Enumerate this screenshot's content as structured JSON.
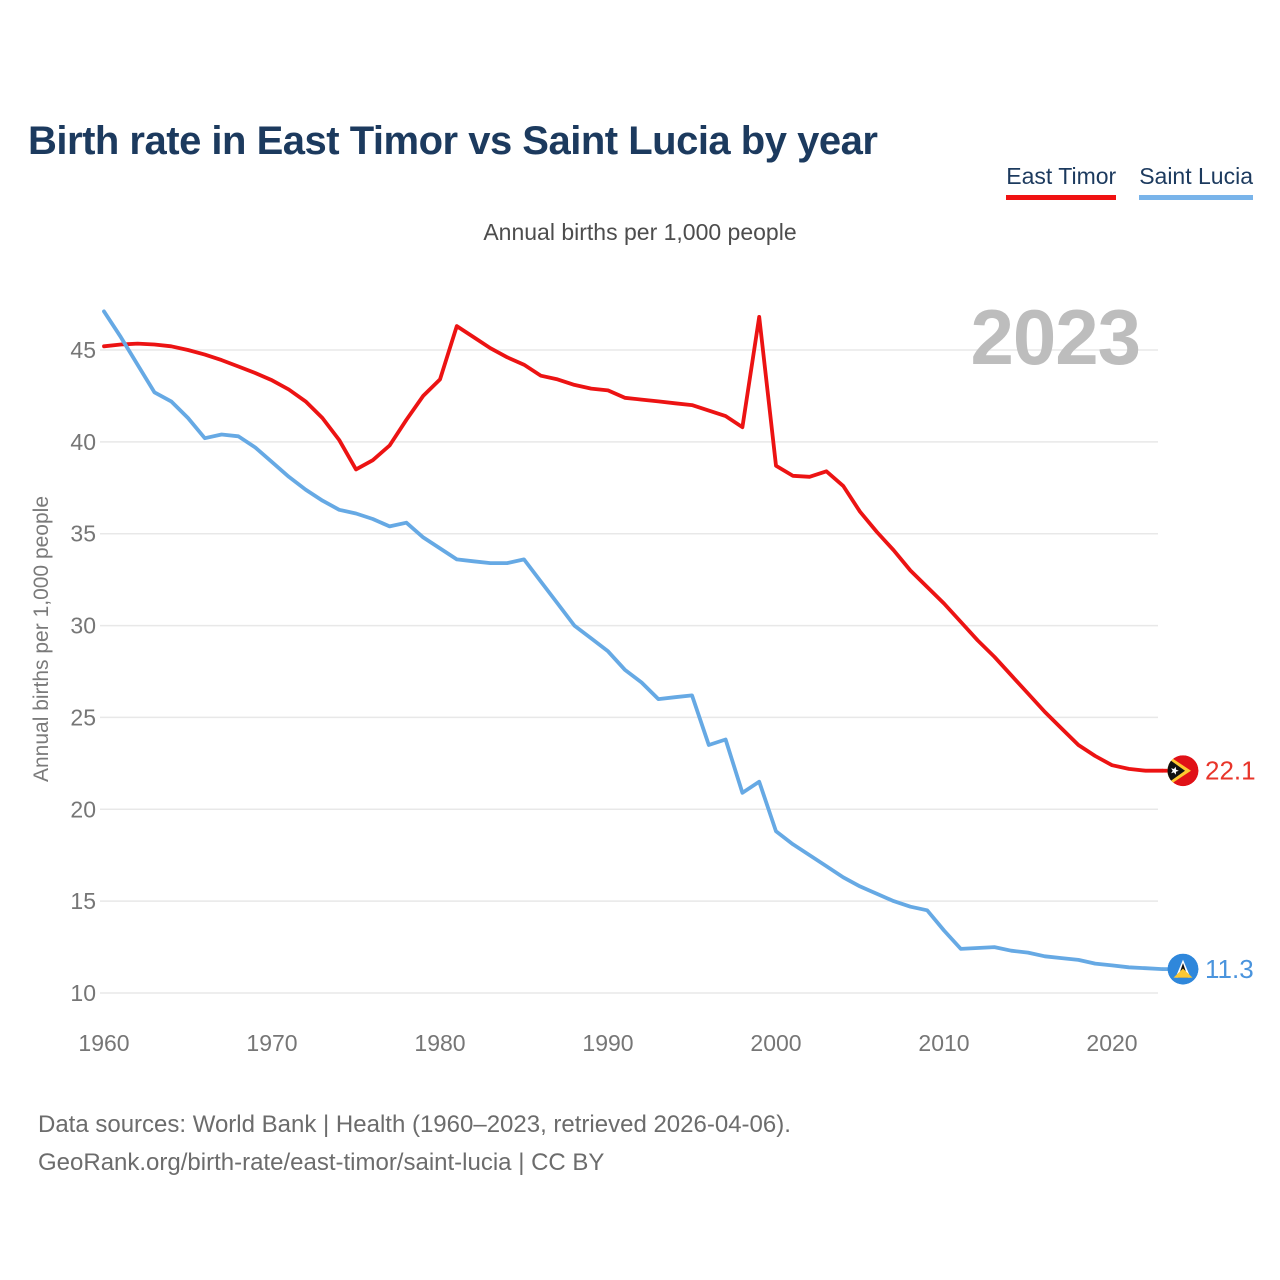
{
  "header": {
    "title": "Birth rate in East Timor vs Saint Lucia by year"
  },
  "legend": {
    "items": [
      {
        "label": "East Timor",
        "underline_color": "#f01212"
      },
      {
        "label": "Saint Lucia",
        "underline_color": "#79b4ea"
      }
    ]
  },
  "subtitle": "Annual births per 1,000 people",
  "watermark_year": "2023",
  "chart_data": {
    "type": "line",
    "title": "Birth rate in East Timor vs Saint Lucia by year",
    "ylabel": "Annual births per 1,000 people",
    "xlabel": "",
    "grid": "horizontal-only",
    "legend_position": "top-right",
    "ylim": [
      8.6,
      47.6
    ],
    "xlim": [
      1960,
      2023
    ],
    "y_ticks": [
      45,
      40,
      35,
      30,
      25,
      20,
      15,
      10
    ],
    "x_ticks": [
      1960,
      1970,
      1980,
      1990,
      2000,
      2010,
      2020
    ],
    "x": [
      1960,
      1961,
      1962,
      1963,
      1964,
      1965,
      1966,
      1967,
      1968,
      1969,
      1970,
      1971,
      1972,
      1973,
      1974,
      1975,
      1976,
      1977,
      1978,
      1979,
      1980,
      1981,
      1982,
      1983,
      1984,
      1985,
      1986,
      1987,
      1988,
      1989,
      1990,
      1991,
      1992,
      1993,
      1994,
      1995,
      1996,
      1997,
      1998,
      1999,
      2000,
      2001,
      2002,
      2003,
      2004,
      2005,
      2006,
      2007,
      2008,
      2009,
      2010,
      2011,
      2012,
      2013,
      2014,
      2015,
      2016,
      2017,
      2018,
      2019,
      2020,
      2021,
      2022,
      2023
    ],
    "series": [
      {
        "name": "East Timor",
        "color": "#ec1313",
        "label_color": "#e8352a",
        "end_label": "22.1",
        "end_value": 22.1,
        "values": [
          45.2,
          45.3,
          45.35,
          45.3,
          45.2,
          45.0,
          44.75,
          44.45,
          44.1,
          43.75,
          43.35,
          42.85,
          42.2,
          41.3,
          40.1,
          38.5,
          39.0,
          39.8,
          41.2,
          42.5,
          43.4,
          46.3,
          45.7,
          45.1,
          44.6,
          44.2,
          43.6,
          43.4,
          43.1,
          42.9,
          42.8,
          42.4,
          42.3,
          42.2,
          42.1,
          42.0,
          41.7,
          41.4,
          40.8,
          46.8,
          38.7,
          38.15,
          38.1,
          38.4,
          37.6,
          36.2,
          35.1,
          34.1,
          33.0,
          32.1,
          31.2,
          30.2,
          29.2,
          28.3,
          27.3,
          26.3,
          25.3,
          24.4,
          23.5,
          22.9,
          22.4,
          22.2,
          22.1,
          22.1
        ]
      },
      {
        "name": "Saint Lucia",
        "color": "#66a9e4",
        "label_color": "#4a94dd",
        "end_label": "11.3",
        "end_value": 11.3,
        "values": [
          47.1,
          45.7,
          44.2,
          42.7,
          42.2,
          41.3,
          40.2,
          40.4,
          40.3,
          39.7,
          38.9,
          38.1,
          37.4,
          36.8,
          36.3,
          36.1,
          35.8,
          35.4,
          35.6,
          34.8,
          34.2,
          33.6,
          33.5,
          33.4,
          33.4,
          33.6,
          32.4,
          31.2,
          30.0,
          29.3,
          28.6,
          27.6,
          26.9,
          26.0,
          26.1,
          26.2,
          23.5,
          23.8,
          20.9,
          21.5,
          18.8,
          18.1,
          17.5,
          16.9,
          16.3,
          15.8,
          15.4,
          15.0,
          14.7,
          14.5,
          13.4,
          12.4,
          12.45,
          12.5,
          12.3,
          12.2,
          12.0,
          11.9,
          11.8,
          11.6,
          11.5,
          11.4,
          11.35,
          11.3
        ]
      }
    ]
  },
  "footer": {
    "line1": "Data sources: World Bank | Health (1960–2023, retrieved 2026-04-06).",
    "line2": "GeoRank.org/birth-rate/east-timor/saint-lucia | CC BY"
  }
}
